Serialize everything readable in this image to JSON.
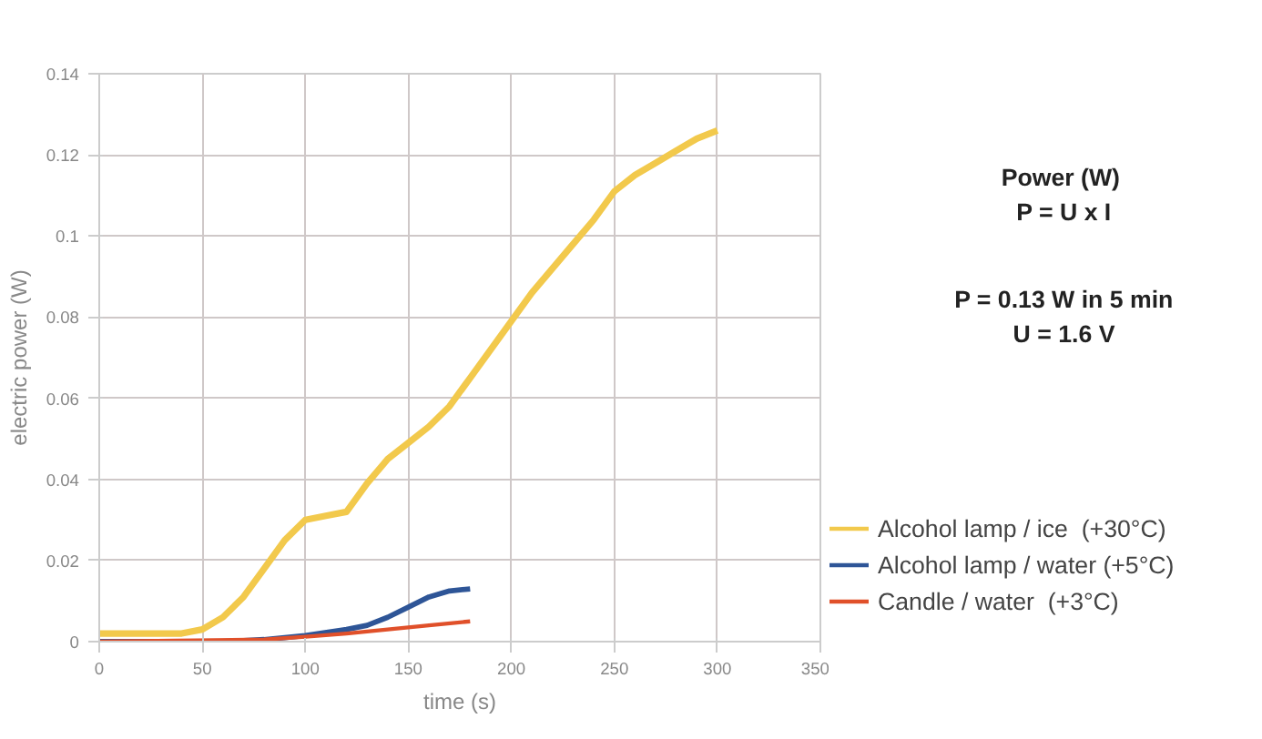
{
  "chart_data": {
    "type": "line",
    "xlabel": "time (s)",
    "ylabel": "electric power (W)",
    "xlim": [
      0,
      350
    ],
    "ylim": [
      0,
      0.14
    ],
    "xticks": [
      0,
      50,
      100,
      150,
      200,
      250,
      300,
      350
    ],
    "yticks": [
      0,
      0.02,
      0.04,
      0.06,
      0.08,
      0.1,
      0.12,
      0.14
    ],
    "grid": true,
    "legend": "bottom right",
    "marker": "none",
    "line_style": "solid",
    "annotations": [
      "Power  (W)",
      "P = U x I",
      "P = 0.13 W in 5 min",
      "U = 1.6 V"
    ],
    "series": [
      {
        "name": "Alcohol lamp / ice  (+30°C)",
        "color": "#f2c94c",
        "x": [
          0,
          40,
          50,
          60,
          70,
          80,
          90,
          100,
          110,
          120,
          130,
          140,
          150,
          160,
          170,
          180,
          190,
          200,
          210,
          220,
          230,
          240,
          250,
          260,
          270,
          280,
          290,
          300
        ],
        "values": [
          0.002,
          0.002,
          0.003,
          0.006,
          0.011,
          0.018,
          0.025,
          0.03,
          0.031,
          0.032,
          0.039,
          0.045,
          0.049,
          0.053,
          0.058,
          0.065,
          0.072,
          0.079,
          0.086,
          0.092,
          0.098,
          0.104,
          0.111,
          0.115,
          0.118,
          0.121,
          0.124,
          0.126
        ]
      },
      {
        "name": "Alcohol lamp / water (+5°C)",
        "color": "#2e5597",
        "x": [
          0,
          60,
          80,
          100,
          120,
          130,
          140,
          150,
          160,
          170,
          180
        ],
        "values": [
          0,
          0,
          0.0005,
          0.0015,
          0.003,
          0.004,
          0.006,
          0.0085,
          0.011,
          0.0125,
          0.013
        ]
      },
      {
        "name": "Candle / water  (+3°C)",
        "color": "#e0502a",
        "x": [
          0,
          80,
          100,
          120,
          140,
          160,
          180
        ],
        "values": [
          0,
          0.0005,
          0.0012,
          0.002,
          0.003,
          0.004,
          0.005
        ]
      }
    ]
  }
}
